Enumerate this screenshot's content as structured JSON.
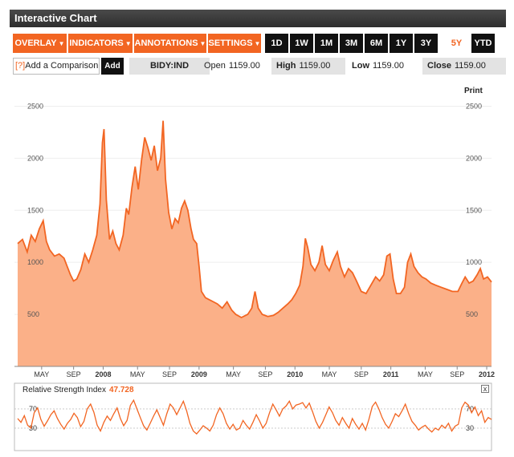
{
  "header": {
    "title": "Interactive Chart"
  },
  "toolbar": {
    "menus": [
      {
        "label": "OVERLAY"
      },
      {
        "label": "INDICATORS"
      },
      {
        "label": "ANNOTATIONS"
      },
      {
        "label": "SETTINGS"
      }
    ],
    "ranges": [
      "1D",
      "1W",
      "1M",
      "3M",
      "6M",
      "1Y",
      "3Y",
      "5Y",
      "YTD"
    ],
    "active_range": "5Y"
  },
  "compare": {
    "qmark": "[?]",
    "label": "Add a Comparison",
    "add_label": "Add"
  },
  "quote": {
    "ticker": "BIDY:IND",
    "open_label": "Open",
    "open": "1159.00",
    "high_label": "High",
    "high": "1159.00",
    "low_label": "Low",
    "low": "1159.00",
    "close_label": "Close",
    "close": "1159.00"
  },
  "print_label": "Print",
  "colors": {
    "accent": "#f26522",
    "area_fill": "#fbb088",
    "line": "#f26522"
  },
  "chart_data": {
    "type": "area",
    "ylim": [
      0,
      2750
    ],
    "yticks": [
      500,
      1000,
      1500,
      2000,
      2500
    ],
    "x_tick_labels": [
      "MAY",
      "SEP",
      "2008",
      "MAY",
      "SEP",
      "2009",
      "MAY",
      "SEP",
      "2010",
      "MAY",
      "SEP",
      "2011",
      "MAY",
      "SEP",
      "2012"
    ],
    "x_range": [
      0,
      59.3
    ],
    "x_ticks": [
      3.0,
      7.0,
      10.7,
      15.0,
      19.0,
      22.7,
      27.0,
      31.0,
      34.7,
      39.0,
      43.0,
      46.7,
      51.0,
      55.0,
      58.7
    ],
    "series": [
      {
        "points": [
          [
            0,
            1180
          ],
          [
            0.6,
            1220
          ],
          [
            1.2,
            1100
          ],
          [
            1.7,
            1260
          ],
          [
            2.2,
            1200
          ],
          [
            2.7,
            1320
          ],
          [
            3.2,
            1400
          ],
          [
            3.6,
            1200
          ],
          [
            4.0,
            1120
          ],
          [
            4.6,
            1060
          ],
          [
            5.2,
            1080
          ],
          [
            5.8,
            1040
          ],
          [
            6.2,
            960
          ],
          [
            6.6,
            880
          ],
          [
            7.0,
            820
          ],
          [
            7.4,
            840
          ],
          [
            7.9,
            930
          ],
          [
            8.4,
            1080
          ],
          [
            8.9,
            1000
          ],
          [
            9.4,
            1120
          ],
          [
            9.9,
            1260
          ],
          [
            10.3,
            1560
          ],
          [
            10.6,
            2150
          ],
          [
            10.8,
            2280
          ],
          [
            11.1,
            1600
          ],
          [
            11.5,
            1220
          ],
          [
            11.9,
            1300
          ],
          [
            12.3,
            1180
          ],
          [
            12.7,
            1120
          ],
          [
            13.2,
            1260
          ],
          [
            13.6,
            1520
          ],
          [
            13.9,
            1460
          ],
          [
            14.3,
            1720
          ],
          [
            14.7,
            1920
          ],
          [
            15.1,
            1700
          ],
          [
            15.5,
            1980
          ],
          [
            15.9,
            2200
          ],
          [
            16.3,
            2100
          ],
          [
            16.7,
            1980
          ],
          [
            17.1,
            2120
          ],
          [
            17.5,
            1880
          ],
          [
            17.9,
            2000
          ],
          [
            18.2,
            2360
          ],
          [
            18.5,
            1800
          ],
          [
            18.9,
            1480
          ],
          [
            19.3,
            1320
          ],
          [
            19.7,
            1420
          ],
          [
            20.1,
            1380
          ],
          [
            20.5,
            1520
          ],
          [
            20.9,
            1590
          ],
          [
            21.3,
            1500
          ],
          [
            21.7,
            1320
          ],
          [
            22.0,
            1220
          ],
          [
            22.4,
            1180
          ],
          [
            22.7,
            960
          ],
          [
            23.0,
            720
          ],
          [
            23.5,
            660
          ],
          [
            24.0,
            640
          ],
          [
            24.5,
            620
          ],
          [
            25.0,
            600
          ],
          [
            25.6,
            560
          ],
          [
            26.2,
            620
          ],
          [
            26.8,
            540
          ],
          [
            27.3,
            500
          ],
          [
            28.0,
            470
          ],
          [
            28.8,
            500
          ],
          [
            29.3,
            560
          ],
          [
            29.7,
            720
          ],
          [
            30.1,
            560
          ],
          [
            30.6,
            500
          ],
          [
            31.3,
            480
          ],
          [
            32.0,
            490
          ],
          [
            32.6,
            520
          ],
          [
            33.2,
            560
          ],
          [
            33.8,
            600
          ],
          [
            34.3,
            640
          ],
          [
            34.8,
            700
          ],
          [
            35.3,
            780
          ],
          [
            35.7,
            960
          ],
          [
            36.0,
            1230
          ],
          [
            36.3,
            1140
          ],
          [
            36.7,
            980
          ],
          [
            37.2,
            920
          ],
          [
            37.7,
            1000
          ],
          [
            38.1,
            1160
          ],
          [
            38.5,
            980
          ],
          [
            39.0,
            920
          ],
          [
            39.5,
            1020
          ],
          [
            40.0,
            1100
          ],
          [
            40.4,
            960
          ],
          [
            40.9,
            860
          ],
          [
            41.4,
            940
          ],
          [
            41.9,
            900
          ],
          [
            42.4,
            820
          ],
          [
            43.0,
            720
          ],
          [
            43.6,
            700
          ],
          [
            44.2,
            780
          ],
          [
            44.8,
            860
          ],
          [
            45.3,
            820
          ],
          [
            45.8,
            880
          ],
          [
            46.2,
            1060
          ],
          [
            46.6,
            1080
          ],
          [
            47.0,
            840
          ],
          [
            47.4,
            700
          ],
          [
            47.9,
            700
          ],
          [
            48.4,
            760
          ],
          [
            48.8,
            1000
          ],
          [
            49.2,
            1080
          ],
          [
            49.6,
            960
          ],
          [
            50.1,
            900
          ],
          [
            50.6,
            860
          ],
          [
            51.1,
            840
          ],
          [
            51.7,
            800
          ],
          [
            52.3,
            780
          ],
          [
            53.0,
            760
          ],
          [
            53.7,
            740
          ],
          [
            54.4,
            720
          ],
          [
            55.1,
            720
          ],
          [
            55.6,
            800
          ],
          [
            56.0,
            860
          ],
          [
            56.5,
            800
          ],
          [
            57.0,
            820
          ],
          [
            57.5,
            880
          ],
          [
            57.9,
            940
          ],
          [
            58.3,
            840
          ],
          [
            58.8,
            860
          ],
          [
            59.3,
            810
          ]
        ]
      }
    ]
  },
  "rsi": {
    "label": "Relative Strength Index",
    "value": "47.728",
    "close_label": "x",
    "ylim": [
      0,
      100
    ],
    "levels": [
      30,
      70
    ],
    "level_labels": [
      "30",
      "70"
    ],
    "values": [
      50,
      42,
      56,
      36,
      30,
      62,
      72,
      48,
      34,
      45,
      58,
      66,
      50,
      38,
      28,
      40,
      48,
      61,
      52,
      33,
      44,
      70,
      80,
      63,
      36,
      24,
      42,
      55,
      46,
      60,
      72,
      50,
      35,
      46,
      77,
      88,
      70,
      52,
      35,
      26,
      40,
      55,
      68,
      52,
      36,
      60,
      80,
      72,
      58,
      72,
      86,
      66,
      40,
      24,
      18,
      26,
      35,
      30,
      24,
      36,
      58,
      72,
      60,
      40,
      28,
      38,
      26,
      30,
      46,
      36,
      28,
      42,
      58,
      45,
      30,
      40,
      62,
      80,
      68,
      55,
      70,
      76,
      86,
      70,
      78,
      80,
      83,
      72,
      82,
      64,
      44,
      30,
      42,
      58,
      74,
      62,
      46,
      36,
      52,
      40,
      30,
      50,
      38,
      28,
      40,
      26,
      48,
      75,
      84,
      70,
      52,
      38,
      30,
      44,
      60,
      54,
      66,
      80,
      60,
      44,
      36,
      26,
      32,
      36,
      28,
      22,
      30,
      26,
      36,
      30,
      40,
      24,
      34,
      38,
      72,
      84,
      78,
      62,
      74,
      56,
      66,
      42,
      52,
      48
    ]
  }
}
